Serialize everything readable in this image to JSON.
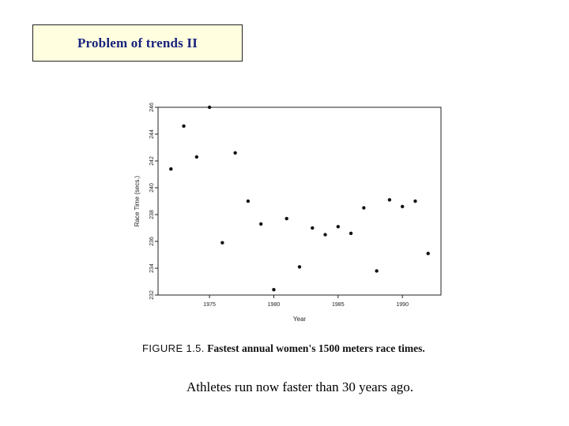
{
  "slide": {
    "title": "Problem of trends II",
    "caption_figure": "FIGURE 1.5.",
    "caption_text": "Fastest annual women's 1500 meters race times.",
    "note": "Athletes run now faster than 30 years ago."
  },
  "chart_data": {
    "type": "scatter",
    "xlabel": "Year",
    "ylabel": "Race Time (secs.)",
    "xlim": [
      1971,
      1993
    ],
    "ylim": [
      232,
      246
    ],
    "x_ticks": [
      1975,
      1980,
      1985,
      1990
    ],
    "x_tick_labels": [
      "1975",
      "1980",
      "1985",
      "1990"
    ],
    "y_ticks": [
      232,
      234,
      236,
      238,
      240,
      242,
      244,
      246
    ],
    "y_tick_labels": [
      "232",
      "234",
      "236",
      "238",
      "240",
      "242",
      "244",
      "246"
    ],
    "grid": false,
    "series": [
      {
        "x": [
          1972,
          1973,
          1974,
          1975,
          1976,
          1977,
          1978,
          1979,
          1980,
          1981,
          1982,
          1983,
          1984,
          1985,
          1986,
          1987,
          1988,
          1989,
          1990,
          1991,
          1992
        ],
        "y": [
          241.4,
          244.6,
          242.3,
          246.0,
          235.9,
          242.6,
          239.0,
          237.3,
          232.4,
          237.7,
          234.1,
          237.0,
          236.5,
          237.1,
          236.6,
          238.5,
          233.8,
          239.1,
          238.6,
          239.0,
          235.1
        ]
      }
    ]
  }
}
